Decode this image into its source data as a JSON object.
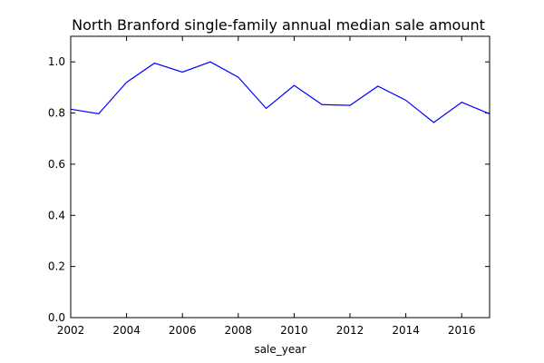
{
  "chart_data": {
    "type": "line",
    "title": "North Branford single-family annual median sale amount",
    "xlabel": "sale_year",
    "ylabel": "",
    "xlim": [
      2002,
      2017
    ],
    "ylim": [
      0.0,
      1.1
    ],
    "xticks": [
      2002,
      2004,
      2006,
      2008,
      2010,
      2012,
      2014,
      2016
    ],
    "xtick_labels": [
      "2002",
      "2004",
      "2006",
      "2008",
      "2010",
      "2012",
      "2014",
      "2016"
    ],
    "yticks": [
      0.0,
      0.2,
      0.4,
      0.6,
      0.8,
      1.0
    ],
    "ytick_labels": [
      "0.0",
      "0.2",
      "0.4",
      "0.6",
      "0.8",
      "1.0"
    ],
    "grid": false,
    "legend": "none",
    "series": [
      {
        "color": "#0000ff",
        "x": [
          2002,
          2003,
          2004,
          2005,
          2006,
          2007,
          2008,
          2009,
          2010,
          2011,
          2012,
          2013,
          2014,
          2015,
          2016,
          2017
        ],
        "y": [
          0.815,
          0.797,
          0.92,
          0.995,
          0.96,
          1.0,
          0.94,
          0.818,
          0.908,
          0.833,
          0.83,
          0.905,
          0.85,
          0.763,
          0.842,
          0.797
        ]
      }
    ]
  }
}
